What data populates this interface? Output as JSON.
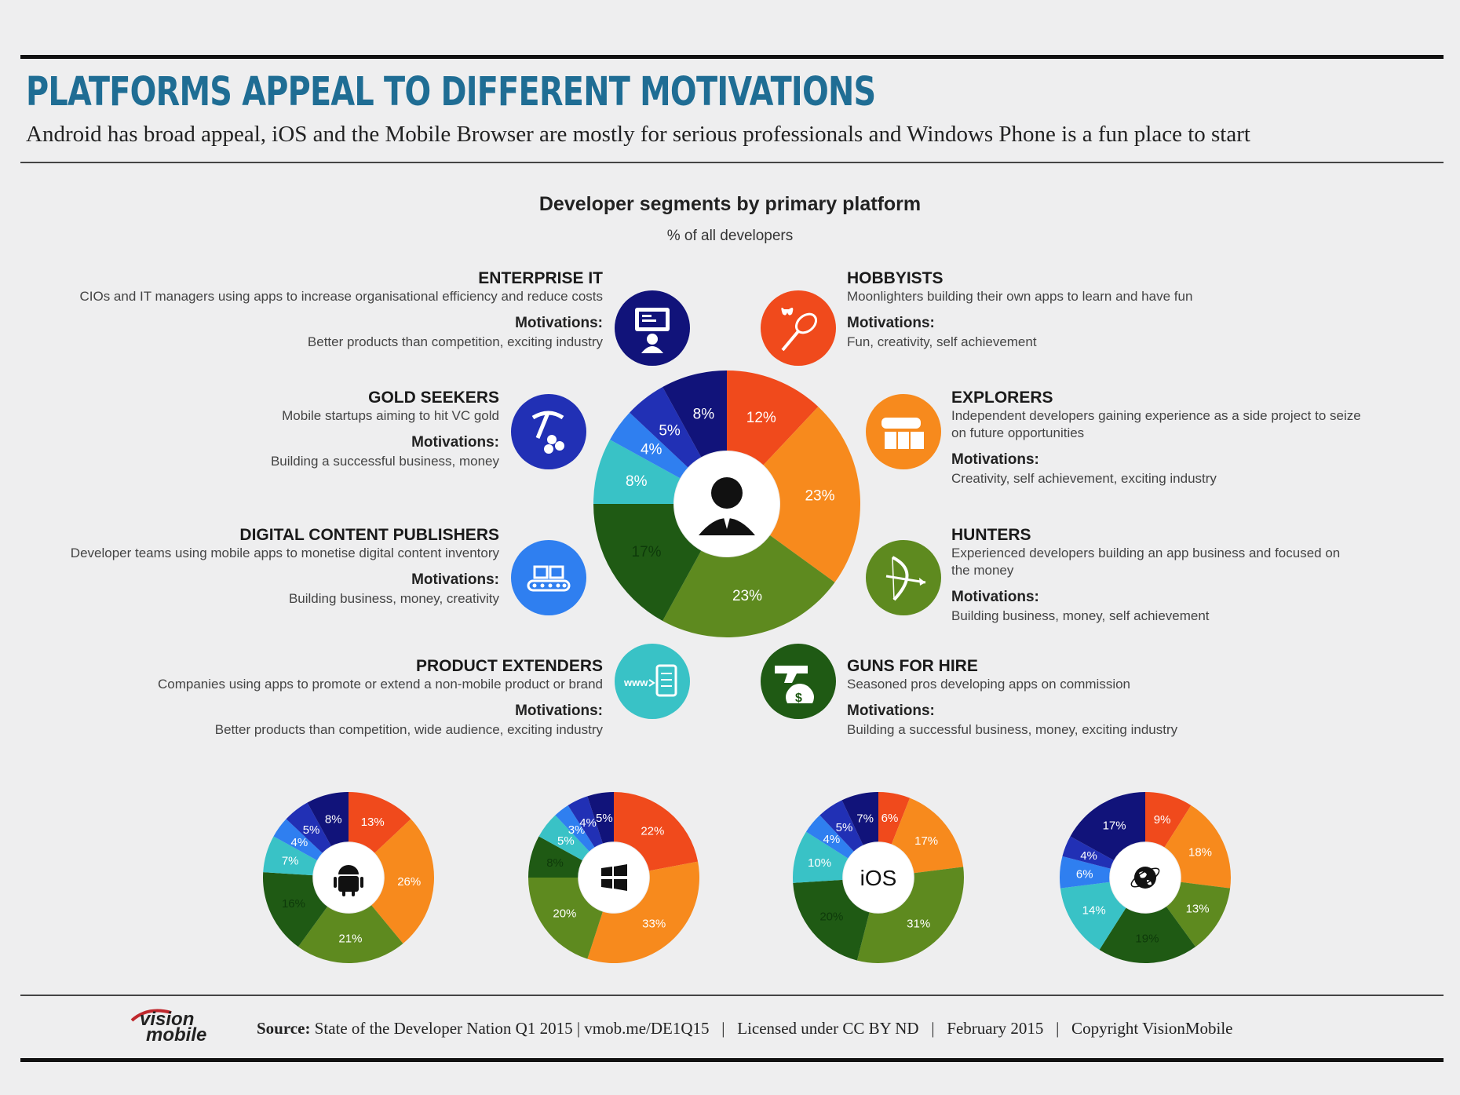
{
  "header": {
    "title": "PLATFORMS APPEAL TO DIFFERENT MOTIVATIONS",
    "subtitle": "Android has broad appeal, iOS and the Mobile Browser are mostly for serious professionals and Windows Phone is a fun place to start"
  },
  "colors": {
    "hobbyists": "#f04a1c",
    "explorers": "#f78a1d",
    "hunters": "#5e8a1f",
    "guns_for_hire": "#1f5a14",
    "product_extenders": "#39c2c6",
    "digital_content_publishers": "#2f7ff0",
    "gold_seekers": "#2130b5",
    "enterprise_it": "#11137a"
  },
  "segments": {
    "enterprise": {
      "name": "ENTERPRISE IT",
      "desc": "CIOs and IT managers using apps to increase organisational efficiency and reduce costs",
      "motivations_label": "Motivations:",
      "motivations": "Better products than competition, exciting industry",
      "icon": "presentation-screen-icon"
    },
    "gold": {
      "name": "GOLD SEEKERS",
      "desc": "Mobile startups aiming to hit VC gold",
      "motivations_label": "Motivations:",
      "motivations": "Building a successful business, money",
      "icon": "pickaxe-icon"
    },
    "dcp": {
      "name": "DIGITAL CONTENT PUBLISHERS",
      "desc": "Developer teams using mobile apps to monetise digital content inventory",
      "motivations_label": "Motivations:",
      "motivations": "Building business, money, creativity",
      "icon": "media-content-icon"
    },
    "product": {
      "name": "PRODUCT EXTENDERS",
      "desc": "Companies using apps to promote or extend a non-mobile product or brand",
      "motivations_label": "Motivations:",
      "motivations": "Better products than competition, wide audience, exciting industry",
      "icon": "www-device-icon"
    },
    "hobby": {
      "name": "HOBBYISTS",
      "desc": "Moonlighters building their own apps to learn and have fun",
      "motivations_label": "Motivations:",
      "motivations": "Fun, creativity, self achievement",
      "icon": "butterfly-net-icon"
    },
    "explorers": {
      "name": "EXPLORERS",
      "desc_1": "Independent developers gaining experience as a side project to seize",
      "desc_2": "on future opportunities",
      "motivations_label": "Motivations:",
      "motivations": "Creativity, self achievement, exciting industry",
      "icon": "binoculars-map-icon"
    },
    "hunters": {
      "name": "HUNTERS",
      "desc_1": "Experienced developers building an app business and focused on",
      "desc_2": "the money",
      "motivations_label": "Motivations:",
      "motivations": "Building business, money, self achievement",
      "icon": "bow-arrow-icon"
    },
    "guns": {
      "name": "GUNS FOR HIRE",
      "desc": "Seasoned pros developing apps on commission",
      "motivations_label": "Motivations:",
      "motivations": "Building a successful business, money, exciting industry",
      "icon": "revolver-money-bag-icon"
    }
  },
  "chart_data": [
    {
      "type": "pie",
      "title": "Developer segments by primary platform",
      "subtitle": "% of all developers",
      "categories": [
        "Hobbyists",
        "Explorers",
        "Hunters",
        "Guns for Hire",
        "Product Extenders",
        "Digital Content Publishers",
        "Gold Seekers",
        "Enterprise IT"
      ],
      "values": [
        12,
        23,
        23,
        17,
        8,
        4,
        5,
        8
      ],
      "labels": [
        "12%",
        "23%",
        "23%",
        "17%",
        "8%",
        "4%",
        "5%",
        "8%"
      ],
      "center_icon": "developer-person-icon"
    },
    {
      "type": "pie",
      "platform_icon": "android-icon",
      "categories": [
        "Hobbyists",
        "Explorers",
        "Hunters",
        "Guns for Hire",
        "Product Extenders",
        "Digital Content Publishers",
        "Gold Seekers",
        "Enterprise IT"
      ],
      "values": [
        13,
        26,
        21,
        16,
        7,
        4,
        5,
        8
      ],
      "labels": [
        "13%",
        "26%",
        "21%",
        "16%",
        "7%",
        "4%",
        "5%",
        "8%"
      ]
    },
    {
      "type": "pie",
      "platform_icon": "windows-icon",
      "categories": [
        "Hobbyists",
        "Explorers",
        "Hunters",
        "Guns for Hire",
        "Product Extenders",
        "Digital Content Publishers",
        "Gold Seekers",
        "Enterprise IT"
      ],
      "values": [
        22,
        33,
        20,
        8,
        5,
        3,
        4,
        5
      ],
      "labels": [
        "22%",
        "33%",
        "20%",
        "8%",
        "5%",
        "3%",
        "4%",
        "5%"
      ]
    },
    {
      "type": "pie",
      "platform_label": "iOS",
      "categories": [
        "Hobbyists",
        "Explorers",
        "Hunters",
        "Guns for Hire",
        "Product Extenders",
        "Digital Content Publishers",
        "Gold Seekers",
        "Enterprise IT"
      ],
      "values": [
        6,
        17,
        31,
        20,
        10,
        4,
        5,
        7
      ],
      "labels": [
        "6%",
        "17%",
        "31%",
        "20%",
        "10%",
        "4%",
        "5%",
        "7%"
      ]
    },
    {
      "type": "pie",
      "platform_icon": "globe-browser-icon",
      "categories": [
        "Hobbyists",
        "Explorers",
        "Hunters",
        "Guns for Hire",
        "Product Extenders",
        "Digital Content Publishers",
        "Gold Seekers",
        "Enterprise IT"
      ],
      "values": [
        9,
        18,
        13,
        19,
        14,
        6,
        4,
        17
      ],
      "labels": [
        "9%",
        "18%",
        "13%",
        "19%",
        "14%",
        "6%",
        "4%",
        "17%"
      ]
    }
  ],
  "footer": {
    "logo_text_1": "vision",
    "logo_text_2": "mobile",
    "source_label": "Source:",
    "source_text": "State of the Developer Nation Q1 2015 | vmob.me/DE1Q15   |   Licensed under CC BY ND   |   February 2015   |   Copyright VisionMobile"
  }
}
